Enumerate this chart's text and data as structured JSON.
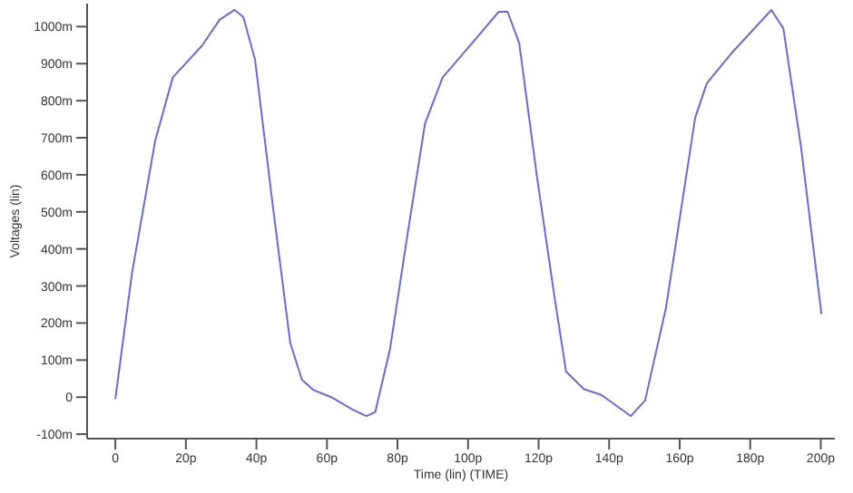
{
  "chart_data": {
    "type": "line",
    "xlabel": "Time (lin) (TIME)",
    "ylabel": "Voltages (lin)",
    "x": [
      0,
      4.7,
      11.3,
      16.3,
      24.6,
      29.6,
      33.8,
      36.3,
      39.6,
      44.6,
      49.6,
      52.9,
      56.2,
      61.2,
      67.1,
      71.2,
      73.7,
      77.9,
      82.9,
      87.8,
      92.8,
      101.2,
      108.7,
      111.2,
      114.5,
      119.5,
      124.5,
      127.8,
      132.8,
      137.8,
      146.1,
      150.2,
      156.1,
      164.4,
      167.7,
      174.4,
      186,
      189.4,
      194.4,
      200.2
    ],
    "series": [
      {
        "color": "#6a6ad8",
        "values": [
          -5,
          333,
          692,
          863,
          949,
          1019,
          1045,
          1026,
          911,
          520,
          146,
          47,
          19,
          0,
          -33,
          -51,
          -40,
          131,
          443,
          738,
          863,
          956,
          1040,
          1040,
          956,
          598,
          271,
          69,
          22,
          6,
          -51,
          -9,
          240,
          754,
          847,
          925,
          1045,
          995,
          676,
          224
        ]
      }
    ],
    "xlim": [
      -8,
      204
    ],
    "ylim": [
      -112,
      1062
    ],
    "xticks": [
      0,
      {
        "value": 20,
        "label": "20p"
      },
      {
        "value": 40,
        "label": "40p"
      },
      {
        "value": 60,
        "label": "60p"
      },
      {
        "value": 80,
        "label": "80p"
      },
      {
        "value": 100,
        "label": "100p"
      },
      {
        "value": 120,
        "label": "120p"
      },
      {
        "value": 140,
        "label": "140p"
      },
      {
        "value": 160,
        "label": "160p"
      },
      {
        "value": 180,
        "label": "180p"
      },
      {
        "value": 200,
        "label": "200p"
      }
    ],
    "yticks": [
      {
        "value": -100,
        "label": "-100m"
      },
      0,
      {
        "value": 100,
        "label": "100m"
      },
      {
        "value": 200,
        "label": "200m"
      },
      {
        "value": 300,
        "label": "300m"
      },
      {
        "value": 400,
        "label": "400m"
      },
      {
        "value": 500,
        "label": "500m"
      },
      {
        "value": 600,
        "label": "600m"
      },
      {
        "value": 700,
        "label": "700m"
      },
      {
        "value": 800,
        "label": "800m"
      },
      {
        "value": 900,
        "label": "900m"
      },
      {
        "value": 1000,
        "label": "1000m"
      }
    ],
    "grid": false,
    "legend": false,
    "marker": "none",
    "line_style": "solid"
  }
}
